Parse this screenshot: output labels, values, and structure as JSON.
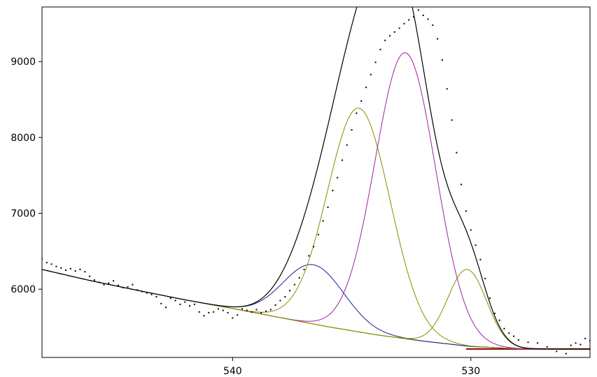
{
  "chart_data": {
    "type": "line",
    "title": "",
    "xlabel": "",
    "ylabel": "",
    "x_reversed": true,
    "xlim": [
      548,
      525
    ],
    "ylim": [
      5100,
      9720
    ],
    "grid": false,
    "x_ticks": [
      540,
      530
    ],
    "y_ticks": [
      6000,
      7000,
      8000,
      9000
    ],
    "x_tick_labels": [
      "540",
      "530"
    ],
    "y_tick_labels": [
      "6000",
      "7000",
      "8000",
      "9000"
    ],
    "background": {
      "color": "#8b8b00",
      "points": [
        [
          548,
          6260
        ],
        [
          546,
          6115
        ],
        [
          544,
          5985
        ],
        [
          542,
          5860
        ],
        [
          540,
          5745
        ],
        [
          538,
          5625
        ],
        [
          536,
          5505
        ],
        [
          534,
          5400
        ],
        [
          532,
          5315
        ],
        [
          530,
          5245
        ],
        [
          528,
          5215
        ],
        [
          526,
          5210
        ],
        [
          525,
          5210
        ]
      ]
    },
    "components": [
      {
        "color": "#1f1f8f",
        "center": 536.6,
        "height": 780,
        "fwhm": 3.0
      },
      {
        "color": "#8b8b00",
        "center": 534.7,
        "height": 2950,
        "fwhm": 3.1
      },
      {
        "color": "#a020a0",
        "center": 532.75,
        "height": 3770,
        "fwhm": 3.0
      },
      {
        "color": "#8b8b00",
        "center": 530.15,
        "height": 1010,
        "fwhm": 1.9
      }
    ],
    "envelope_color": "#000000",
    "baseline_color": "#8b0000",
    "raw_data": {
      "color": "#000000",
      "points": [
        [
          548.0,
          6400
        ],
        [
          547.8,
          6350
        ],
        [
          547.6,
          6330
        ],
        [
          547.4,
          6300
        ],
        [
          547.2,
          6280
        ],
        [
          547.0,
          6250
        ],
        [
          546.8,
          6270
        ],
        [
          546.6,
          6240
        ],
        [
          546.4,
          6260
        ],
        [
          546.2,
          6230
        ],
        [
          546.0,
          6170
        ],
        [
          545.8,
          6120
        ],
        [
          545.6,
          6090
        ],
        [
          545.4,
          6060
        ],
        [
          545.2,
          6080
        ],
        [
          545.0,
          6110
        ],
        [
          544.8,
          6050
        ],
        [
          544.6,
          6020
        ],
        [
          544.4,
          6030
        ],
        [
          544.2,
          6060
        ],
        [
          544.0,
          5990
        ],
        [
          543.8,
          5970
        ],
        [
          543.6,
          5950
        ],
        [
          543.4,
          5930
        ],
        [
          543.2,
          5900
        ],
        [
          543.0,
          5810
        ],
        [
          542.8,
          5760
        ],
        [
          542.6,
          5880
        ],
        [
          542.4,
          5850
        ],
        [
          542.2,
          5800
        ],
        [
          542.0,
          5830
        ],
        [
          541.8,
          5780
        ],
        [
          541.6,
          5800
        ],
        [
          541.4,
          5700
        ],
        [
          541.2,
          5650
        ],
        [
          541.0,
          5690
        ],
        [
          540.8,
          5700
        ],
        [
          540.6,
          5740
        ],
        [
          540.4,
          5720
        ],
        [
          540.2,
          5690
        ],
        [
          540.0,
          5620
        ],
        [
          539.8,
          5660
        ],
        [
          539.6,
          5740
        ],
        [
          539.4,
          5720
        ],
        [
          539.2,
          5700
        ],
        [
          539.0,
          5730
        ],
        [
          538.8,
          5690
        ],
        [
          538.6,
          5710
        ],
        [
          538.4,
          5730
        ],
        [
          538.2,
          5790
        ],
        [
          538.0,
          5850
        ],
        [
          537.8,
          5900
        ],
        [
          537.6,
          5980
        ],
        [
          537.4,
          6060
        ],
        [
          537.2,
          6150
        ],
        [
          537.0,
          6260
        ],
        [
          536.8,
          6440
        ],
        [
          536.6,
          6560
        ],
        [
          536.4,
          6720
        ],
        [
          536.2,
          6900
        ],
        [
          536.0,
          7080
        ],
        [
          535.8,
          7300
        ],
        [
          535.6,
          7470
        ],
        [
          535.4,
          7700
        ],
        [
          535.2,
          7900
        ],
        [
          535.0,
          8100
        ],
        [
          534.8,
          8320
        ],
        [
          534.6,
          8480
        ],
        [
          534.4,
          8660
        ],
        [
          534.2,
          8830
        ],
        [
          534.0,
          8990
        ],
        [
          533.8,
          9160
        ],
        [
          533.6,
          9280
        ],
        [
          533.4,
          9340
        ],
        [
          533.2,
          9390
        ],
        [
          533.0,
          9440
        ],
        [
          532.8,
          9500
        ],
        [
          532.6,
          9550
        ],
        [
          532.4,
          9590
        ],
        [
          532.2,
          9680
        ],
        [
          532.0,
          9610
        ],
        [
          531.8,
          9560
        ],
        [
          531.6,
          9480
        ],
        [
          531.4,
          9300
        ],
        [
          531.2,
          9020
        ],
        [
          531.0,
          8640
        ],
        [
          530.8,
          8230
        ],
        [
          530.6,
          7800
        ],
        [
          530.4,
          7380
        ],
        [
          530.2,
          7030
        ],
        [
          530.0,
          6780
        ],
        [
          529.8,
          6580
        ],
        [
          529.6,
          6390
        ],
        [
          529.4,
          6140
        ],
        [
          529.2,
          5880
        ],
        [
          529.0,
          5680
        ],
        [
          528.8,
          5590
        ],
        [
          528.6,
          5480
        ],
        [
          528.4,
          5420
        ],
        [
          528.2,
          5380
        ],
        [
          528.0,
          5330
        ],
        [
          527.6,
          5300
        ],
        [
          527.2,
          5290
        ],
        [
          526.8,
          5240
        ],
        [
          526.4,
          5180
        ],
        [
          526.0,
          5150
        ],
        [
          525.8,
          5260
        ],
        [
          525.6,
          5290
        ],
        [
          525.4,
          5270
        ],
        [
          525.2,
          5350
        ],
        [
          525.0,
          5320
        ]
      ]
    }
  }
}
